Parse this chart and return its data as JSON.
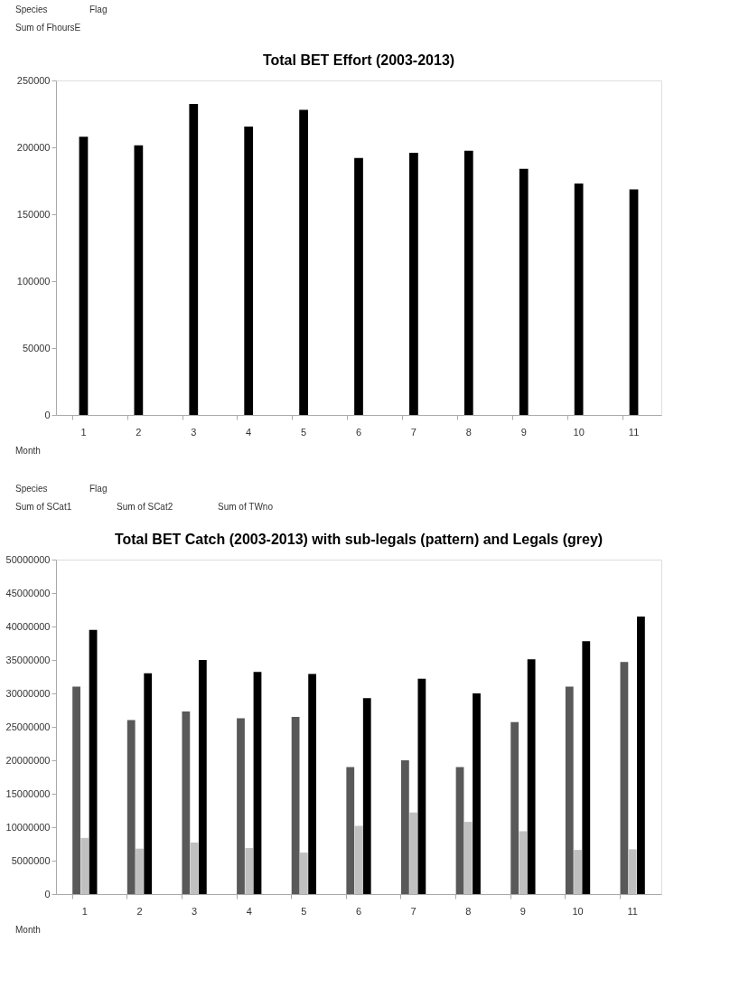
{
  "chart_data": [
    {
      "type": "bar",
      "title": "Total BET Effort (2003-2013)",
      "categories": [
        "1",
        "2",
        "3",
        "4",
        "5",
        "6",
        "7",
        "8",
        "9",
        "10",
        "11"
      ],
      "series": [
        {
          "color": "#000000",
          "values": [
            208000,
            201500,
            232500,
            215500,
            228000,
            192000,
            196000,
            197500,
            184000,
            173000,
            168500
          ]
        }
      ],
      "ylim": [
        0,
        250000
      ],
      "yticks": [
        0,
        50000,
        100000,
        150000,
        200000,
        250000
      ],
      "grid": false,
      "legend": false,
      "annotations": [
        "Species",
        "Flag",
        "Sum of FhoursE",
        "Month"
      ]
    },
    {
      "type": "bar",
      "title": "Total BET Catch (2003-2013) with sub-legals (pattern) and Legals (grey)",
      "categories": [
        "1",
        "2",
        "3",
        "4",
        "5",
        "6",
        "7",
        "8",
        "9",
        "10",
        "11"
      ],
      "series": [
        {
          "color": "#595959",
          "values": [
            31000000,
            26000000,
            27300000,
            26300000,
            26500000,
            19000000,
            20000000,
            19000000,
            25700000,
            31000000,
            34700000
          ]
        },
        {
          "color": "#c0c0c0",
          "values": [
            8400000,
            6800000,
            7700000,
            6900000,
            6200000,
            10200000,
            12200000,
            10800000,
            9400000,
            6600000,
            6700000
          ]
        },
        {
          "color": "#000000",
          "values": [
            39500000,
            33000000,
            35000000,
            33200000,
            32900000,
            29300000,
            32200000,
            30000000,
            35100000,
            37800000,
            41500000
          ]
        }
      ],
      "ylim": [
        0,
        50000000
      ],
      "yticks": [
        0,
        5000000,
        10000000,
        15000000,
        20000000,
        25000000,
        30000000,
        35000000,
        40000000,
        45000000,
        50000000
      ],
      "grid": false,
      "legend": false,
      "annotations": [
        "Species",
        "Flag",
        "Sum of SCat1",
        "Sum of SCat2",
        "Sum of TWno",
        "Month"
      ]
    }
  ]
}
